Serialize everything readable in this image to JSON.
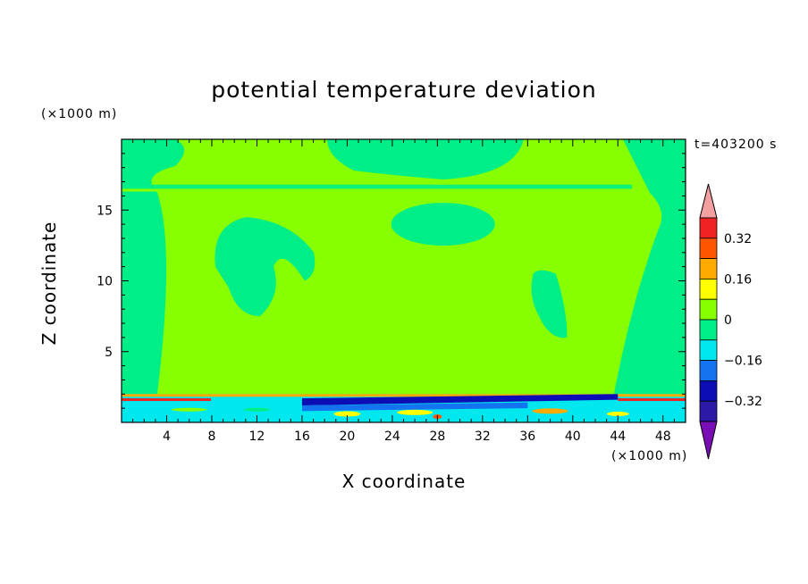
{
  "chart_data": {
    "type": "heatmap",
    "title": "potential temperature deviation",
    "xlabel": "X coordinate",
    "ylabel": "Z coordinate",
    "x_unit": "(×1000 m)",
    "y_unit": "(×1000 m)",
    "time_label": "t=403200 s",
    "xlim": [
      0,
      50
    ],
    "ylim": [
      0,
      20
    ],
    "x_ticks": [
      4,
      8,
      12,
      16,
      20,
      24,
      28,
      32,
      36,
      40,
      44,
      48
    ],
    "y_ticks": [
      5,
      10,
      15
    ],
    "colorbar": {
      "levels": [
        -0.4,
        -0.32,
        -0.24,
        -0.16,
        -0.08,
        0,
        0.08,
        0.16,
        0.24,
        0.32,
        0.4
      ],
      "colors": [
        "#7a0eb5",
        "#2a1aa5",
        "#0d0db5",
        "#1473ee",
        "#00e8ee",
        "#00ee88",
        "#88ff00",
        "#ffff00",
        "#ffaa00",
        "#ff5500",
        "#ee2222",
        "#f4a0a0"
      ],
      "tick_labels": [
        "0.32",
        "0.16",
        "0",
        "−0.16",
        "−0.32"
      ],
      "tick_values": [
        0.32,
        0.16,
        0,
        -0.16,
        -0.32
      ]
    },
    "dominant_field": {
      "background": "#88ff00",
      "near_zero_negative": "#00ee88",
      "boundary_layer_low": "#00e8ee",
      "boundary_layer_high": "#ffaa00"
    }
  }
}
